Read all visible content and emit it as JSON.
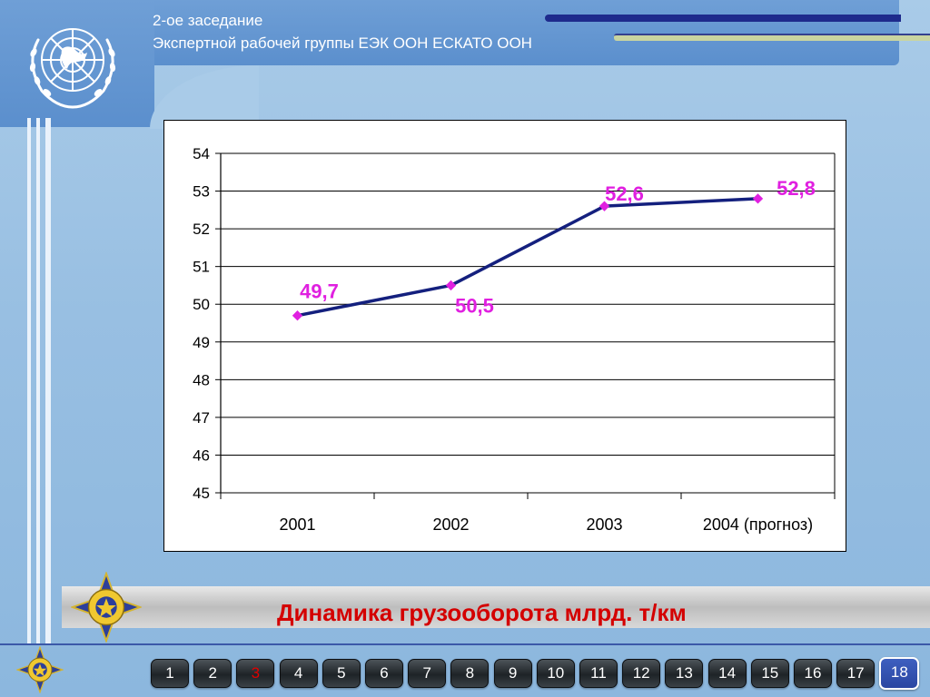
{
  "header": {
    "line1": "2-ое заседание",
    "line2": "Экспертной рабочей группы ЕЭК ООН ЕСКАТО ООН"
  },
  "slide_title": "Динамика грузооборота млрд. т/км",
  "colors": {
    "series_line": "#14207e",
    "marker": "#e020e0",
    "data_label": "#e020e0",
    "title": "#d40000"
  },
  "chart_data": {
    "type": "line",
    "categories": [
      "2001",
      "2002",
      "2003",
      "2004 (прогноз)"
    ],
    "values": [
      49.7,
      50.5,
      52.6,
      52.8
    ],
    "data_labels": [
      "49,7",
      "50,5",
      "52,6",
      "52,8"
    ],
    "ylim": [
      45,
      54
    ],
    "yticks": [
      "45",
      "46",
      "47",
      "48",
      "49",
      "50",
      "51",
      "52",
      "53",
      "54"
    ],
    "grid": true,
    "legend": "none"
  },
  "icons": {
    "logo": "un-emblem-icon",
    "badge": "star-emblem-icon"
  },
  "navigation": {
    "pages": [
      "1",
      "2",
      "3",
      "4",
      "5",
      "6",
      "7",
      "8",
      "9",
      "10",
      "11",
      "12",
      "13",
      "14",
      "15",
      "16",
      "17",
      "18"
    ],
    "current": "3"
  }
}
